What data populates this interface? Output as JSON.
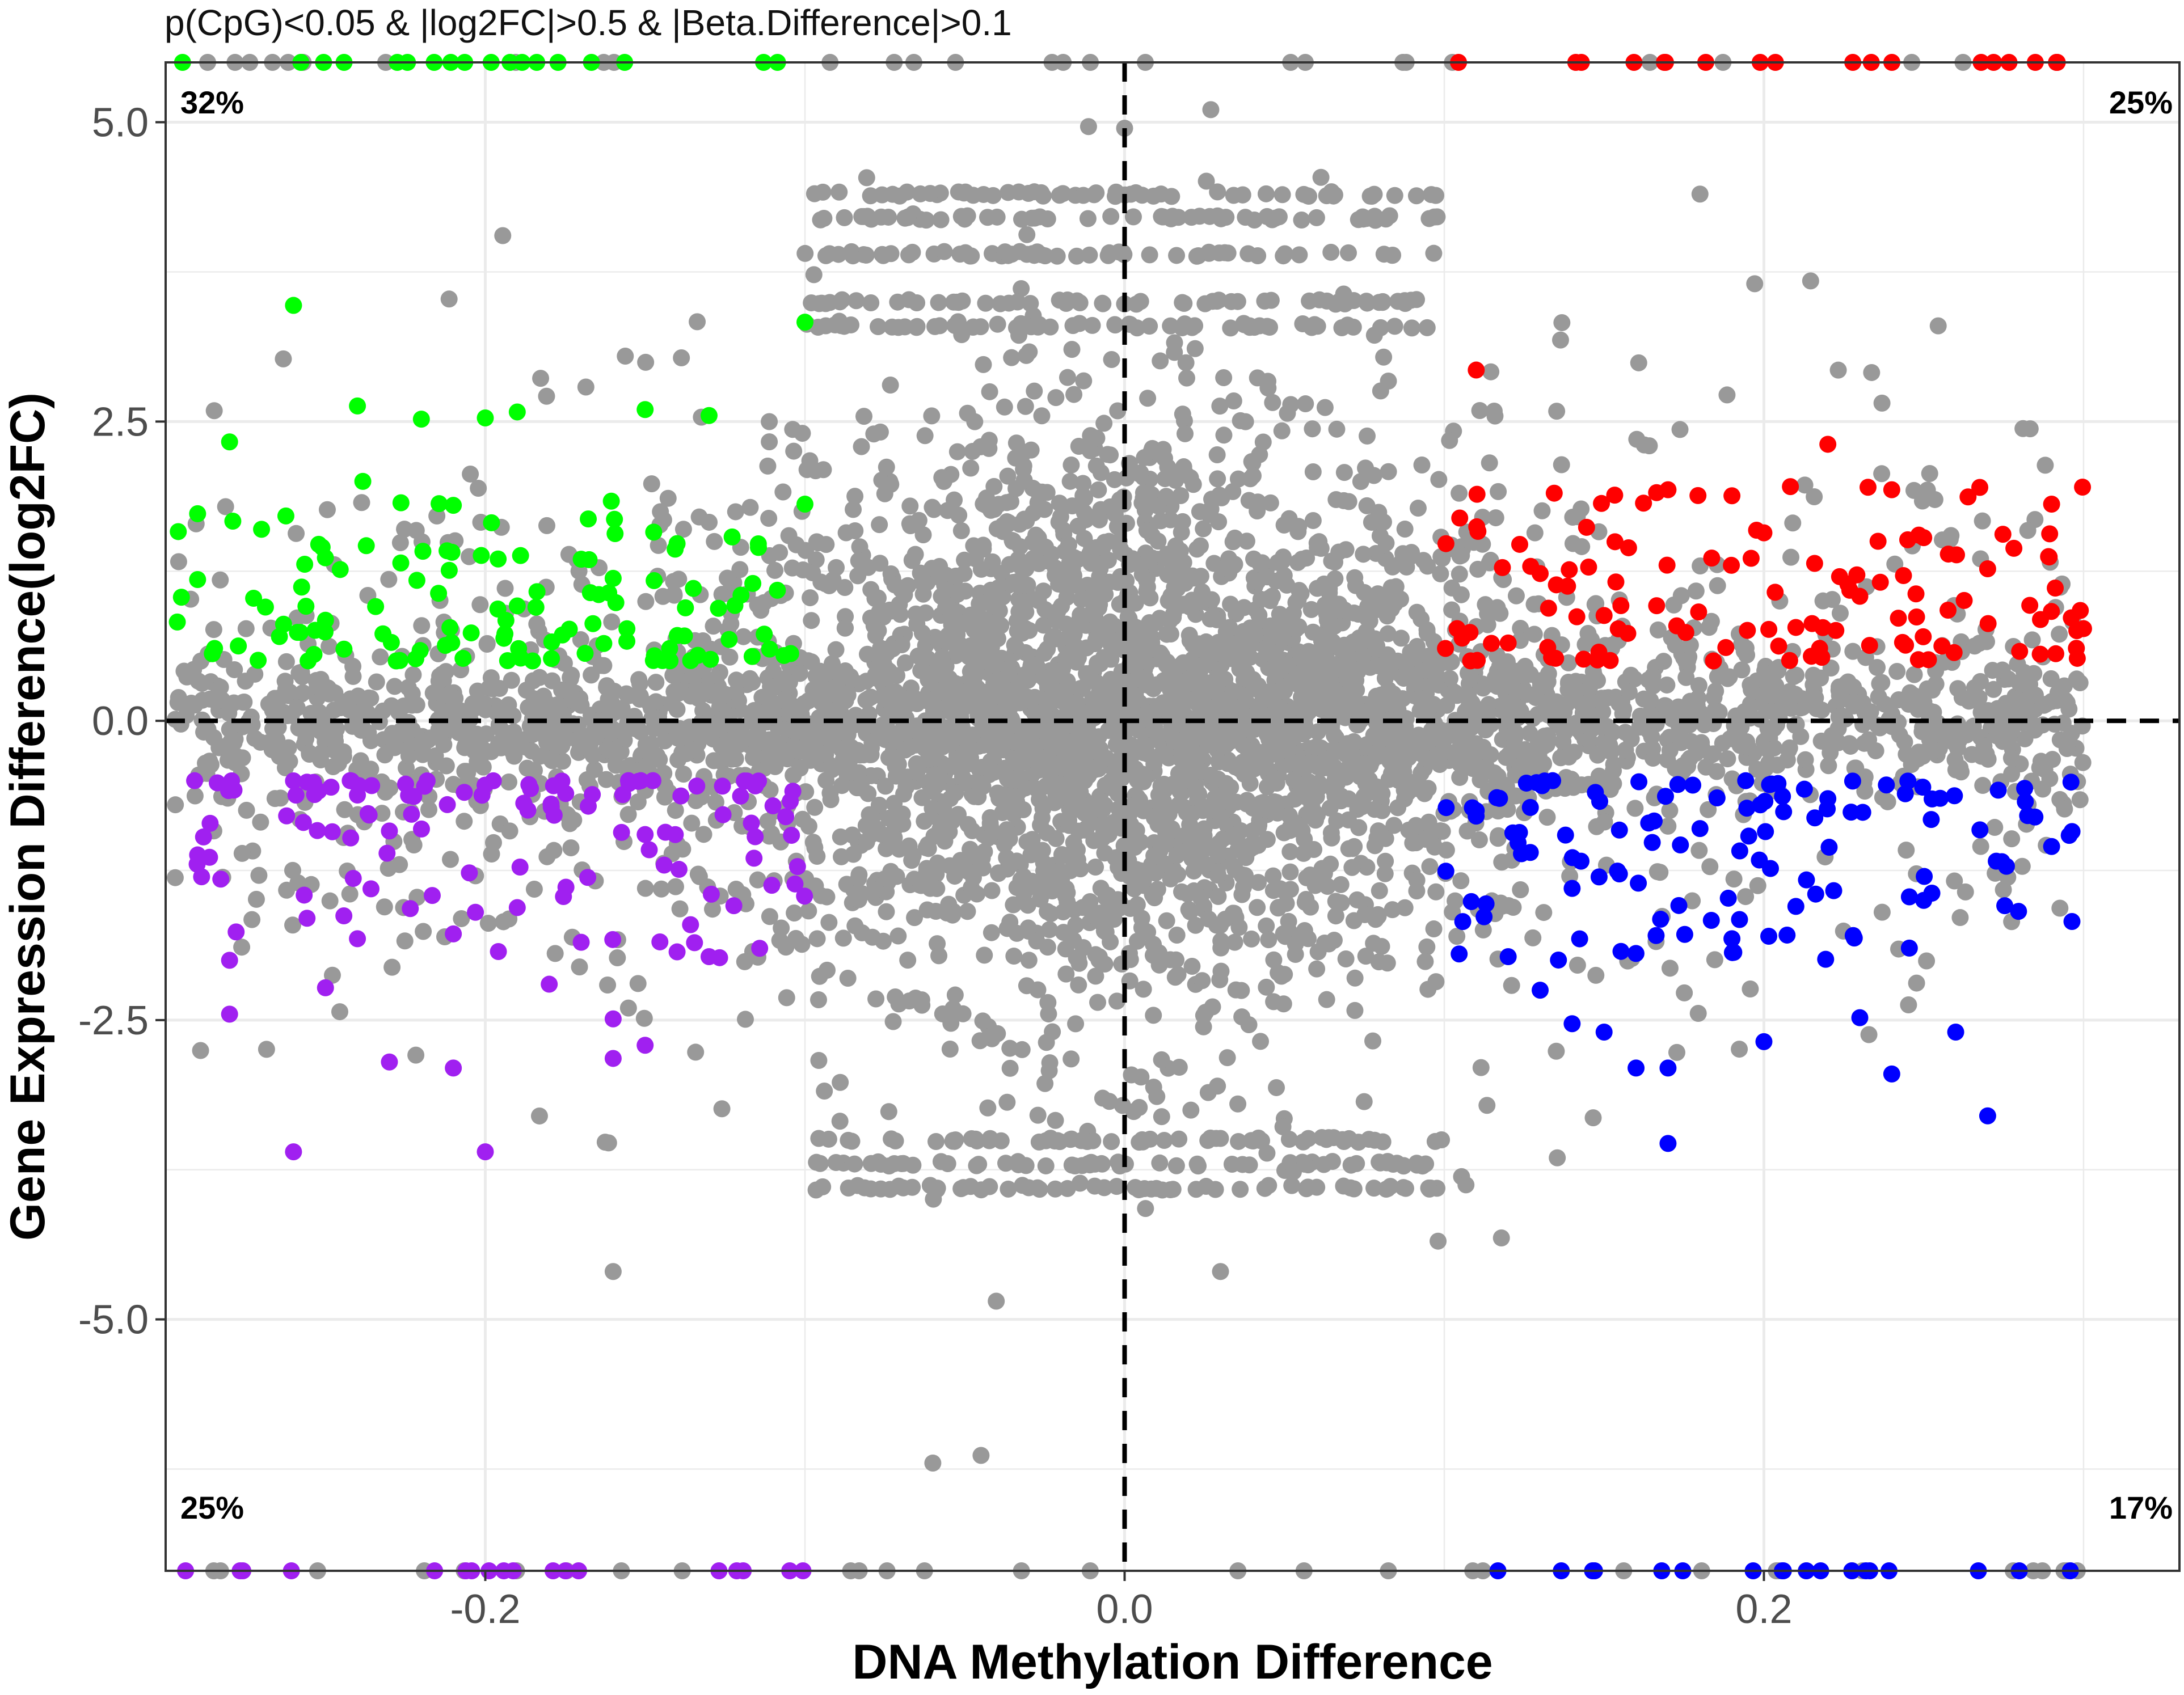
{
  "chart_data": {
    "type": "scatter",
    "title": "p(CpG)<0.05 & |log2FC|>0.5 & |Beta.Difference|>0.1",
    "xlabel": "DNA Methylation Difference",
    "ylabel": "Gene Expression Difference(log2FC)",
    "xlim": [
      -0.3,
      0.33
    ],
    "ylim": [
      -7.1,
      5.5
    ],
    "x_ticks": [
      -0.2,
      0.0,
      0.2
    ],
    "x_tick_labels": [
      "-0.2",
      "0.0",
      "0.2"
    ],
    "y_ticks": [
      5.0,
      2.5,
      0.0,
      -2.5,
      -5.0
    ],
    "y_tick_labels": [
      "5.0",
      "2.5",
      "0.0",
      "-2.5",
      "-5.0"
    ],
    "grid": true,
    "reference_lines": {
      "x": 0.0,
      "y": 0.0,
      "style": "dashed"
    },
    "quadrant_labels": {
      "top_left": "32%",
      "top_right": "25%",
      "bottom_left": "25%",
      "bottom_right": "17%"
    },
    "colors": {
      "background_points": "#999999",
      "hypo_up": "#00ff00",
      "hyper_up": "#ff0000",
      "hypo_down": "#a020f0",
      "hyper_down": "#0000ff",
      "reference_line": "#000000",
      "grid": "#ebebeb"
    },
    "thresholds": {
      "beta_difference": 0.1,
      "log2fc": 0.5,
      "p_cpg": 0.05
    },
    "highlighted_groups": [
      {
        "group": "hypo_up",
        "color": "#00ff00",
        "x_range": [
          -0.297,
          -0.1
        ],
        "y_range": [
          0.5,
          5.5
        ],
        "points": [
          [
            -0.26,
            3.47
          ],
          [
            -0.28,
            2.33
          ],
          [
            -0.24,
            2.63
          ],
          [
            -0.22,
            2.52
          ],
          [
            -0.2,
            2.53
          ],
          [
            -0.19,
            2.58
          ],
          [
            -0.15,
            2.6
          ],
          [
            -0.13,
            2.55
          ],
          [
            -0.1,
            3.33
          ],
          [
            -0.1,
            1.81
          ],
          [
            -0.17,
            1.35
          ],
          [
            -0.29,
            1.73
          ],
          [
            -0.21,
            1.8
          ],
          [
            -0.16,
            1.19
          ],
          [
            -0.14,
            1.48
          ],
          [
            -0.27,
            1.6
          ],
          [
            -0.29,
            1.18
          ],
          [
            -0.25,
            0.84
          ],
          [
            -0.19,
            0.96
          ],
          [
            -0.12,
            1.05
          ]
        ]
      },
      {
        "group": "hyper_up",
        "color": "#ff0000",
        "x_range": [
          0.1,
          0.3
        ],
        "y_range": [
          0.5,
          5.5
        ],
        "points": [
          [
            0.11,
            2.93
          ],
          [
            0.22,
            2.31
          ],
          [
            0.24,
            1.93
          ],
          [
            0.29,
            1.81
          ],
          [
            0.17,
            1.93
          ],
          [
            0.19,
            1.88
          ],
          [
            0.2,
            1.57
          ],
          [
            0.25,
            1.53
          ],
          [
            0.13,
            1.23
          ],
          [
            0.27,
            1.27
          ],
          [
            0.23,
            1.04
          ],
          [
            0.3,
            0.77
          ],
          [
            0.15,
            0.88
          ],
          [
            0.21,
            0.78
          ],
          [
            0.12,
            0.65
          ],
          [
            0.28,
            0.58
          ]
        ]
      },
      {
        "group": "hypo_down",
        "color": "#a020f0",
        "x_range": [
          -0.297,
          -0.1
        ],
        "y_range": [
          -7.1,
          -0.5
        ],
        "points": [
          [
            -0.28,
            -2.0
          ],
          [
            -0.28,
            -2.45
          ],
          [
            -0.25,
            -2.23
          ],
          [
            -0.24,
            -1.82
          ],
          [
            -0.23,
            -2.85
          ],
          [
            -0.21,
            -2.9
          ],
          [
            -0.2,
            -3.6
          ],
          [
            -0.26,
            -3.6
          ],
          [
            -0.21,
            -1.78
          ],
          [
            -0.18,
            -2.2
          ],
          [
            -0.17,
            -1.85
          ],
          [
            -0.16,
            -2.49
          ],
          [
            -0.16,
            -2.82
          ],
          [
            -0.15,
            -2.71
          ],
          [
            -0.14,
            -1.93
          ],
          [
            -0.13,
            -1.97
          ],
          [
            -0.19,
            -1.56
          ],
          [
            -0.23,
            -0.92
          ],
          [
            -0.29,
            -1.12
          ],
          [
            -0.24,
            -0.62
          ],
          [
            -0.15,
            -0.95
          ],
          [
            -0.11,
            -0.71
          ]
        ]
      },
      {
        "group": "hyper_down",
        "color": "#0000ff",
        "x_range": [
          0.1,
          0.3
        ],
        "y_range": [
          -7.1,
          -0.5
        ],
        "points": [
          [
            0.12,
            -1.97
          ],
          [
            0.13,
            -2.25
          ],
          [
            0.14,
            -2.53
          ],
          [
            0.15,
            -2.6
          ],
          [
            0.16,
            -2.9
          ],
          [
            0.17,
            -2.9
          ],
          [
            0.17,
            -3.53
          ],
          [
            0.19,
            -1.82
          ],
          [
            0.2,
            -2.68
          ],
          [
            0.23,
            -2.48
          ],
          [
            0.24,
            -2.95
          ],
          [
            0.26,
            -2.6
          ],
          [
            0.27,
            -3.3
          ],
          [
            0.21,
            -1.55
          ],
          [
            0.25,
            -1.5
          ],
          [
            0.29,
            -1.05
          ],
          [
            0.14,
            -1.4
          ],
          [
            0.11,
            -0.75
          ],
          [
            0.18,
            -0.9
          ],
          [
            0.22,
            -0.65
          ]
        ]
      }
    ],
    "background_points_description": "dense grey cloud of non-significant CpG-gene pairs centred at (0, 0), roughly -0.3..0.3 in x and -4.6..5.0 in y"
  }
}
